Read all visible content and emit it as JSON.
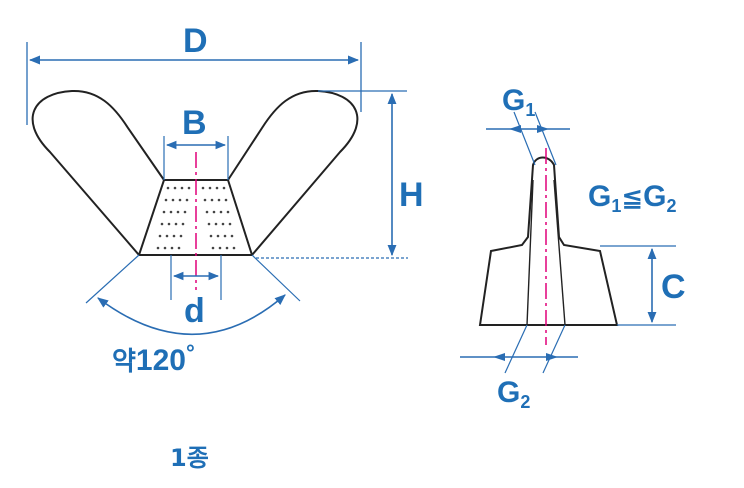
{
  "labels": {
    "D": "D",
    "B": "B",
    "H": "H",
    "d": "d",
    "angle_prefix": "약",
    "angle_value": "120",
    "angle_unit": "°",
    "G1": "G",
    "G1_sub": "1",
    "G2": "G",
    "G2_sub": "2",
    "relation_G": "G",
    "relation_sub1": "1",
    "relation_symbol": "≦",
    "relation_G2": "G",
    "relation_sub2": "2",
    "C": "C",
    "type_caption": "1종"
  },
  "colors": {
    "outline": "#222222",
    "dimension": "#2a6db3",
    "label": "#1f6fb6",
    "centerline": "#e0007a",
    "thread_dots": "#444444"
  }
}
